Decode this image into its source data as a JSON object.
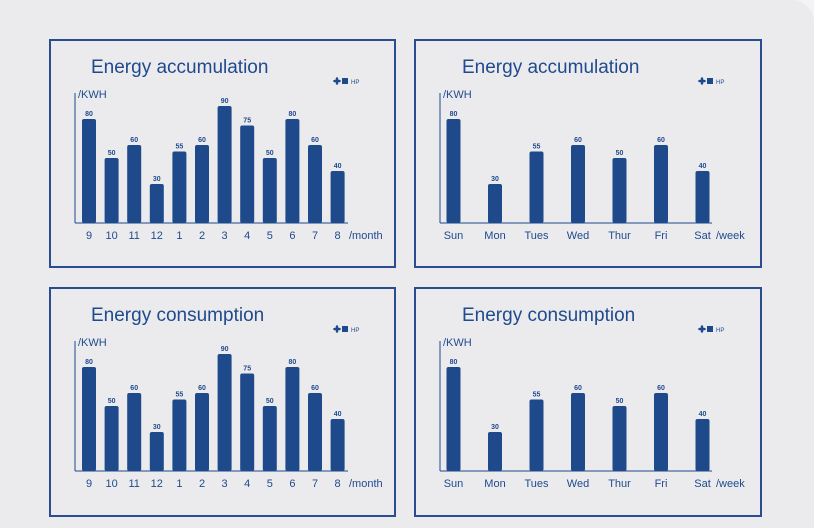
{
  "colors": {
    "bar": "#1e4a8b",
    "text": "#1f4a8d",
    "frame": "#2a4d8f"
  },
  "legend_icon": "fan-icon",
  "chart_data": [
    {
      "id": "accum_month",
      "type": "bar",
      "title": "Energy accumulation",
      "ylabel": "/KWH",
      "xlabel": "/month",
      "legend": "HP",
      "categories": [
        "9",
        "10",
        "11",
        "12",
        "1",
        "2",
        "3",
        "4",
        "5",
        "6",
        "7",
        "8"
      ],
      "values": [
        80,
        50,
        60,
        30,
        55,
        60,
        90,
        75,
        50,
        80,
        60,
        40
      ],
      "ylim": [
        0,
        100
      ]
    },
    {
      "id": "accum_week",
      "type": "bar",
      "title": "Energy accumulation",
      "ylabel": "/KWH",
      "xlabel": "/week",
      "legend": "HP",
      "categories": [
        "Sun",
        "Mon",
        "Tues",
        "Wed",
        "Thur",
        "Fri",
        "Sat"
      ],
      "values": [
        80,
        30,
        55,
        60,
        50,
        60,
        40
      ],
      "ylim": [
        0,
        100
      ]
    },
    {
      "id": "cons_month",
      "type": "bar",
      "title": "Energy consumption",
      "ylabel": "/KWH",
      "xlabel": "/month",
      "legend": "HP",
      "categories": [
        "9",
        "10",
        "11",
        "12",
        "1",
        "2",
        "3",
        "4",
        "5",
        "6",
        "7",
        "8"
      ],
      "values": [
        80,
        50,
        60,
        30,
        55,
        60,
        90,
        75,
        50,
        80,
        60,
        40
      ],
      "ylim": [
        0,
        100
      ]
    },
    {
      "id": "cons_week",
      "type": "bar",
      "title": "Energy consumption",
      "ylabel": "/KWH",
      "xlabel": "/week",
      "legend": "HP",
      "categories": [
        "Sun",
        "Mon",
        "Tues",
        "Wed",
        "Thur",
        "Fri",
        "Sat"
      ],
      "values": [
        80,
        30,
        55,
        60,
        50,
        60,
        40
      ],
      "ylim": [
        0,
        100
      ]
    }
  ]
}
